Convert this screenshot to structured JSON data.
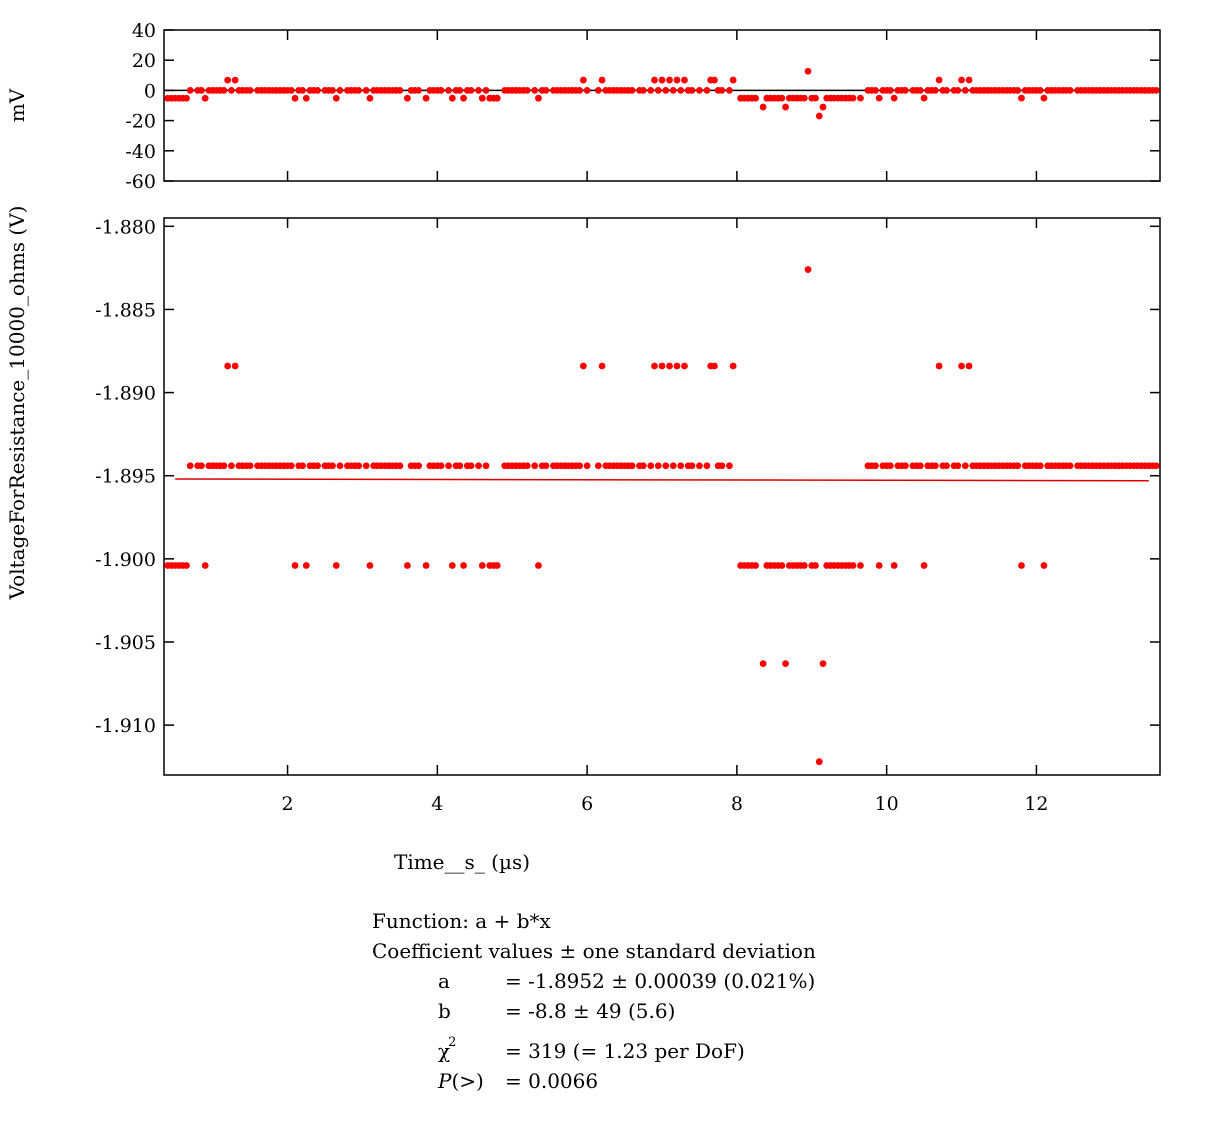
{
  "chart_data": [
    {
      "type": "scatter",
      "panel": "residuals",
      "title": "",
      "xlabel": "",
      "ylabel": "mV",
      "xlim": [
        0.35,
        13.65
      ],
      "ylim": [
        -60,
        40
      ],
      "yticks": [
        40,
        20,
        0,
        -20,
        -40,
        -60
      ],
      "yticklabels": [
        "40",
        "20",
        "0",
        "-20",
        "-40",
        "-60"
      ],
      "xticks": [
        2,
        4,
        6,
        8,
        10,
        12
      ],
      "grid": false,
      "zero_line": 0,
      "point_color": "#ff0000",
      "line_color": "#000000",
      "x": [
        0.4,
        0.6,
        0.9,
        1.2,
        1.3,
        2.1,
        2.2,
        2.65,
        3.1,
        3.6,
        3.85,
        4.2,
        4.35,
        4.6,
        4.75,
        5.35,
        5.95,
        6.2,
        6.9,
        7.1,
        7.3,
        7.7,
        7.95,
        8.05,
        8.3,
        8.35,
        8.65,
        8.95,
        9.1,
        9.15,
        9.5,
        9.9,
        10.1,
        10.5,
        10.7,
        11.0,
        11.8,
        12.1,
        13.0
      ],
      "y": [
        -5,
        -5,
        -5,
        7,
        7,
        -5,
        -5,
        -5,
        -5,
        -5,
        -5,
        -5,
        -5,
        -5,
        -5,
        -5,
        7,
        7,
        7,
        7,
        7,
        7,
        7,
        -5,
        -5,
        -11,
        -11,
        13,
        -17,
        -11,
        -5,
        -5,
        -5,
        -5,
        7,
        7,
        -5,
        -5,
        0
      ]
    },
    {
      "type": "scatter",
      "panel": "data",
      "title": "",
      "xlabel": "Time__s_ (µs)",
      "ylabel": "VoltageForResistance_10000_ohms (V)",
      "xlim": [
        0.35,
        13.65
      ],
      "ylim": [
        -1.913,
        -1.8795
      ],
      "yticks": [
        -1.88,
        -1.885,
        -1.89,
        -1.895,
        -1.9,
        -1.905,
        -1.91
      ],
      "yticklabels": [
        "-1.880",
        "-1.885",
        "-1.890",
        "-1.895",
        "-1.900",
        "-1.905",
        "-1.910"
      ],
      "xticks": [
        2,
        4,
        6,
        8,
        10,
        12
      ],
      "xticklabels": [
        "2",
        "4",
        "6",
        "8",
        "10",
        "12"
      ],
      "grid": false,
      "point_color": "#ff0000",
      "levels": [
        -1.8884,
        -1.8944,
        -1.9004,
        -1.9063
      ],
      "series": [
        {
          "name": "",
          "x_start": 0.4,
          "x_end": 13.6,
          "x_step": 0.05,
          "default_y": -1.8944,
          "excluded_x": [
            [
              8.02,
              9.52
            ]
          ],
          "overrides": [
            {
              "y": -1.8884,
              "x": [
                1.2,
                1.3,
                5.95,
                6.2,
                6.9,
                7.0,
                7.1,
                7.2,
                7.3,
                7.65,
                7.7,
                7.95,
                10.7,
                11.0,
                11.1
              ]
            },
            {
              "y": -1.9004,
              "x": [
                0.4,
                0.45,
                0.5,
                0.55,
                0.6,
                0.65,
                0.9,
                2.1,
                2.25,
                2.65,
                3.1,
                3.6,
                3.85,
                4.2,
                4.35,
                4.6,
                4.7,
                4.75,
                4.8,
                5.35,
                8.05,
                8.1,
                8.15,
                8.2,
                8.25,
                8.4,
                8.45,
                8.5,
                8.55,
                8.6,
                8.7,
                8.75,
                8.8,
                8.85,
                8.9,
                8.95,
                9.0,
                9.05,
                9.2,
                9.25,
                9.3,
                9.35,
                9.4,
                9.45,
                9.5,
                9.55,
                9.65,
                9.9,
                10.1,
                10.5,
                11.8,
                12.1
              ]
            },
            {
              "y": -1.9063,
              "x": [
                8.35,
                8.65,
                9.15
              ]
            },
            {
              "y": -1.8826,
              "x": [
                8.95
              ]
            },
            {
              "y": -1.9122,
              "x": [
                9.1
              ]
            }
          ],
          "omitted_x": [
            0.75,
            1.55,
            2.45,
            2.75,
            3.0,
            3.55,
            3.8,
            4.1,
            4.5,
            4.85,
            5.25,
            5.5,
            6.05,
            6.1,
            6.65,
            6.8,
            7.45,
            7.55,
            7.85,
            8.0,
            9.6,
            9.7,
            10.3,
            10.85,
            12.5
          ]
        }
      ],
      "fit_line": {
        "x": [
          0.5,
          13.5
        ],
        "y": [
          -1.8952,
          -1.8953
        ],
        "color": "#dd0000"
      }
    }
  ],
  "fit_box": {
    "function_line": "Function: a + b*x",
    "coef_header": "Coefficient values ± one standard deviation",
    "coefficients": [
      {
        "name": "a",
        "value": "= -1.8952 ± 0.00039  (0.021%)"
      },
      {
        "name": "b",
        "value": "= -8.8 ± 49  (5.6)"
      }
    ],
    "chi_symbol": "χ",
    "chi_superscript": "2",
    "chi_value": "= 319 (= 1.23 per DoF)",
    "p_label_italic": "P",
    "p_label_rest": "(>)",
    "p_value": "= 0.0066"
  }
}
